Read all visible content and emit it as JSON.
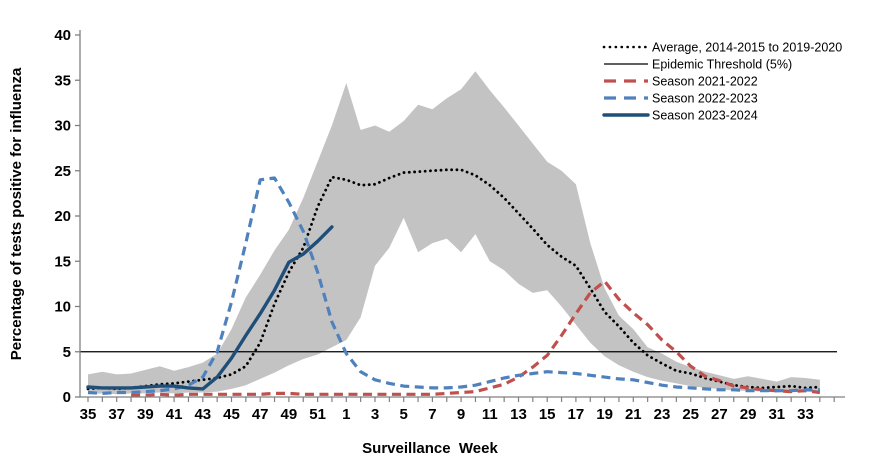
{
  "chart_data": {
    "type": "line",
    "title": "",
    "xlabel": "Surveillance  Week",
    "ylabel": "Percentage of tests positive for influenza",
    "ylim": [
      0,
      40
    ],
    "y_ticks": [
      0,
      5,
      10,
      15,
      20,
      25,
      30,
      35,
      40
    ],
    "x_label_step": 2,
    "grid": false,
    "legend_position": "top-right",
    "weeks": [
      35,
      36,
      37,
      38,
      39,
      40,
      41,
      42,
      43,
      44,
      45,
      46,
      47,
      48,
      49,
      50,
      51,
      52,
      1,
      2,
      3,
      4,
      5,
      6,
      7,
      8,
      9,
      10,
      11,
      12,
      13,
      14,
      15,
      16,
      17,
      18,
      19,
      20,
      21,
      22,
      23,
      24,
      25,
      26,
      27,
      28,
      29,
      30,
      31,
      32,
      33,
      34
    ],
    "threshold": {
      "label": "Epidemic Threshold (5%)",
      "value": 5,
      "style": "solid-thin",
      "color": "#000000"
    },
    "band": {
      "name": "range-of-average-seasons",
      "color": "#c3c3c3",
      "upper": [
        2.5,
        2.8,
        2.5,
        2.6,
        3.0,
        3.4,
        2.9,
        3.3,
        3.8,
        4.8,
        7.5,
        11.0,
        13.5,
        16.2,
        18.5,
        22.0,
        26.0,
        30.0,
        34.7,
        29.5,
        30.0,
        29.3,
        30.5,
        32.3,
        31.8,
        33.0,
        34.0,
        36.0,
        33.9,
        32.0,
        30.0,
        28.0,
        26.0,
        25.0,
        23.5,
        17.0,
        12.0,
        9.0,
        7.5,
        5.5,
        4.8,
        3.9,
        3.3,
        2.8,
        2.4,
        2.0,
        2.3,
        2.0,
        1.7,
        2.2,
        2.1,
        1.9
      ],
      "lower": [
        0.3,
        0.4,
        0.3,
        0.4,
        0.4,
        0.5,
        0.4,
        0.5,
        0.5,
        0.6,
        0.9,
        1.3,
        2.0,
        2.7,
        3.5,
        4.2,
        4.7,
        5.5,
        6.3,
        8.8,
        14.5,
        16.5,
        19.8,
        16.0,
        17.0,
        17.5,
        16.0,
        18.0,
        15.0,
        14.0,
        12.5,
        11.5,
        11.8,
        10.0,
        8.0,
        6.0,
        4.5,
        3.5,
        2.8,
        2.2,
        1.8,
        1.5,
        1.2,
        1.0,
        0.9,
        0.7,
        0.7,
        0.6,
        0.5,
        0.6,
        0.6,
        0.5
      ]
    },
    "series": [
      {
        "name": "Average, 2014-2015 to 2019-2020",
        "style": "dotted",
        "color": "#000000",
        "values": [
          0.9,
          1.0,
          0.9,
          1.0,
          1.2,
          1.4,
          1.5,
          1.7,
          1.9,
          2.1,
          2.5,
          3.4,
          6.0,
          10.3,
          13.8,
          16.5,
          21.0,
          24.3,
          24.0,
          23.4,
          23.5,
          24.2,
          24.8,
          24.9,
          25.0,
          25.1,
          25.1,
          24.5,
          23.4,
          22.0,
          20.3,
          18.6,
          16.8,
          15.5,
          14.5,
          12.0,
          9.4,
          7.8,
          6.0,
          4.6,
          3.7,
          2.9,
          2.6,
          2.1,
          1.7,
          1.3,
          1.1,
          1.0,
          1.1,
          1.2,
          1.0,
          1.1
        ]
      },
      {
        "name": "Season 2021-2022",
        "style": "dashed",
        "color": "#c0504d",
        "values": [
          null,
          null,
          null,
          0.2,
          0.2,
          0.3,
          0.2,
          0.3,
          0.3,
          0.3,
          0.3,
          0.3,
          0.3,
          0.4,
          0.4,
          0.3,
          0.3,
          0.3,
          0.3,
          0.3,
          0.3,
          0.3,
          0.3,
          0.3,
          0.3,
          0.4,
          0.5,
          0.6,
          1.0,
          1.4,
          2.2,
          3.3,
          4.6,
          6.8,
          9.2,
          11.5,
          12.8,
          10.8,
          9.3,
          8.0,
          6.3,
          5.0,
          3.4,
          2.3,
          1.8,
          1.2,
          1.0,
          0.8,
          0.7,
          0.6,
          0.7,
          0.5
        ]
      },
      {
        "name": "Season 2022-2023",
        "style": "dashed",
        "color": "#4f81bd",
        "values": [
          0.5,
          0.4,
          0.5,
          0.5,
          0.6,
          0.7,
          0.9,
          1.3,
          2.2,
          5.0,
          10.5,
          17.0,
          24.0,
          24.2,
          21.5,
          18.3,
          13.8,
          8.3,
          4.8,
          2.8,
          1.9,
          1.5,
          1.2,
          1.1,
          1.0,
          1.0,
          1.1,
          1.3,
          1.7,
          2.1,
          2.4,
          2.6,
          2.8,
          2.7,
          2.6,
          2.4,
          2.2,
          2.0,
          1.9,
          1.6,
          1.3,
          1.1,
          1.0,
          0.9,
          0.8,
          0.8,
          0.7,
          0.7,
          0.7,
          0.7,
          0.8,
          0.8
        ]
      },
      {
        "name": "Season 2023-2024",
        "style": "solid",
        "color": "#1f4e79",
        "values": [
          1.1,
          1.0,
          1.0,
          1.0,
          1.1,
          1.2,
          1.2,
          1.0,
          0.9,
          2.2,
          4.3,
          6.8,
          9.2,
          11.8,
          14.9,
          15.8,
          17.2,
          18.8
        ]
      }
    ]
  }
}
